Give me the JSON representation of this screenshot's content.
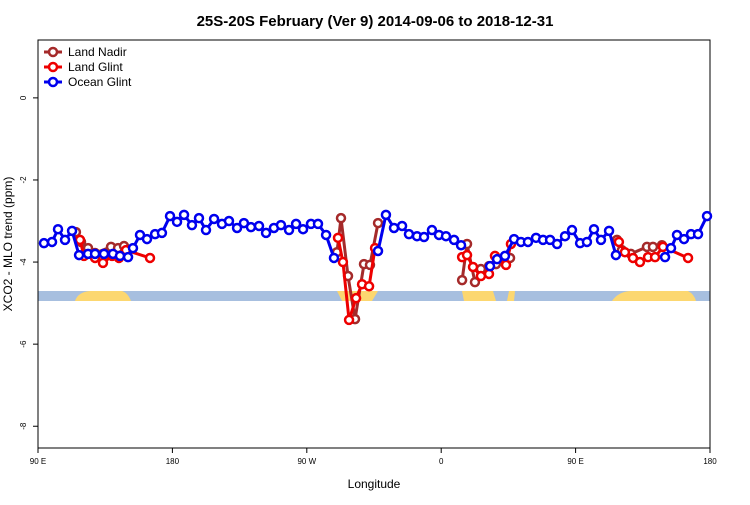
{
  "chart_data": {
    "type": "line",
    "title": "25S-20S February (Ver 9)   2014-09-06 to 2018-12-31",
    "x_label": "Longitude",
    "y_label": "XCO2 - MLO trend (ppm)",
    "xlim": [
      90,
      540
    ],
    "ylim": [
      -8.53,
      1.41
    ],
    "xticks": [
      {
        "value": 90,
        "label": "90 E"
      },
      180,
      {
        "value": 270,
        "label": "90 W"
      },
      0,
      {
        "value": 450,
        "label": "90 E"
      },
      {
        "value": 540,
        "label": "180"
      }
    ],
    "yticks": [
      0,
      -2,
      -4,
      -6,
      -8
    ],
    "legend": "top-left",
    "series": [
      {
        "name": "Land Nadir",
        "color": "#a52a2a",
        "x": [
          115.4,
          118.8,
          123.5,
          128.2,
          138.9,
          143.6,
          147.6,
          null,
          290.2,
          292.9,
          297.6,
          302.3,
          308.3,
          312.3,
          317.7,
          null,
          374,
          377.3,
          382.6,
          386.6,
          392,
          396.7,
          406.1,
          null,
          477.7,
          481,
          487,
          497.8,
          501.8,
          507.8
        ],
        "values": [
          -3.27,
          -3.51,
          -3.66,
          -3.78,
          -3.63,
          -3.66,
          -3.61,
          null,
          -3.76,
          -2.93,
          -4.34,
          -5.39,
          -4.05,
          -4.07,
          -3.05,
          null,
          -4.44,
          -3.56,
          -4.49,
          -4.17,
          -4.1,
          -4.05,
          -3.9,
          null,
          -3.46,
          -3.71,
          -3.8,
          -3.63,
          -3.63,
          -3.59
        ]
      },
      {
        "name": "Land Glint",
        "color": "#ee0000",
        "x": [
          118.1,
          120.8,
          128.2,
          133.5,
          139.6,
          144.2,
          148.9,
          165,
          null,
          290.9,
          294.2,
          298.3,
          303,
          307,
          311.7,
          315.7,
          null,
          374,
          377.3,
          381.3,
          386.6,
          392,
          396,
          403.4,
          406.7,
          null,
          479,
          483,
          488.4,
          493.1,
          498.5,
          503.2,
          508.5,
          525.3
        ],
        "values": [
          -3.46,
          -3.85,
          -3.9,
          -4.02,
          -3.85,
          -3.9,
          -3.71,
          -3.9,
          null,
          -3.41,
          -4.0,
          -5.41,
          -4.88,
          -4.54,
          -4.59,
          -3.66,
          null,
          -3.88,
          -3.83,
          -4.12,
          -4.34,
          -4.29,
          -3.85,
          -4.07,
          -3.56,
          null,
          -3.51,
          -3.76,
          -3.9,
          -4.0,
          -3.88,
          -3.88,
          -3.63,
          -3.9
        ]
      },
      {
        "name": "Ocean Glint",
        "color": "#0000ee",
        "x": [
          94,
          99.4,
          103.4,
          108.1,
          112.8,
          117.5,
          123.5,
          128.2,
          134.2,
          140.2,
          144.9,
          150.3,
          153.6,
          158.3,
          163,
          168.4,
          173,
          178.4,
          183.1,
          187.8,
          193.1,
          197.8,
          202.5,
          207.9,
          213.2,
          217.9,
          223.3,
          227.9,
          232.6,
          238,
          242.7,
          248,
          252.7,
          258.1,
          262.8,
          267.5,
          272.8,
          277.5,
          282.9,
          288.2,
          null,
          317.7,
          323,
          328.4,
          333.8,
          338.4,
          343.8,
          348.5,
          353.8,
          358.5,
          363.2,
          368.6,
          373.3,
          null,
          392.7,
          397.4,
          402.7,
          408.8,
          413.4,
          418.1,
          423.5,
          428.2,
          432.9,
          437.6,
          442.9,
          447.6,
          453,
          457.6,
          462.3,
          467,
          472.4,
          477,
          null,
          509.9,
          513.9,
          517.9,
          522.6,
          527.3,
          532,
          538
        ],
        "values": [
          -3.54,
          -3.51,
          -3.2,
          -3.46,
          -3.24,
          -3.83,
          -3.8,
          -3.8,
          -3.8,
          -3.8,
          -3.85,
          -3.88,
          -3.66,
          -3.34,
          -3.44,
          -3.32,
          -3.29,
          -2.88,
          -3.02,
          -2.85,
          -3.1,
          -2.93,
          -3.22,
          -2.95,
          -3.07,
          -3.0,
          -3.17,
          -3.05,
          -3.15,
          -3.12,
          -3.29,
          -3.17,
          -3.1,
          -3.22,
          -3.07,
          -3.2,
          -3.07,
          -3.07,
          -3.34,
          -3.9,
          null,
          -3.73,
          -2.85,
          -3.17,
          -3.12,
          -3.32,
          -3.37,
          -3.39,
          -3.22,
          -3.34,
          -3.37,
          -3.46,
          -3.59,
          null,
          -4.1,
          -3.93,
          -3.85,
          -3.44,
          -3.51,
          -3.51,
          -3.41,
          -3.46,
          -3.46,
          -3.56,
          -3.37,
          -3.22,
          -3.54,
          -3.51,
          -3.2,
          -3.46,
          -3.24,
          -3.83,
          null,
          -3.88,
          -3.66,
          -3.34,
          -3.44,
          -3.32,
          -3.32,
          -2.88
        ]
      }
    ]
  }
}
